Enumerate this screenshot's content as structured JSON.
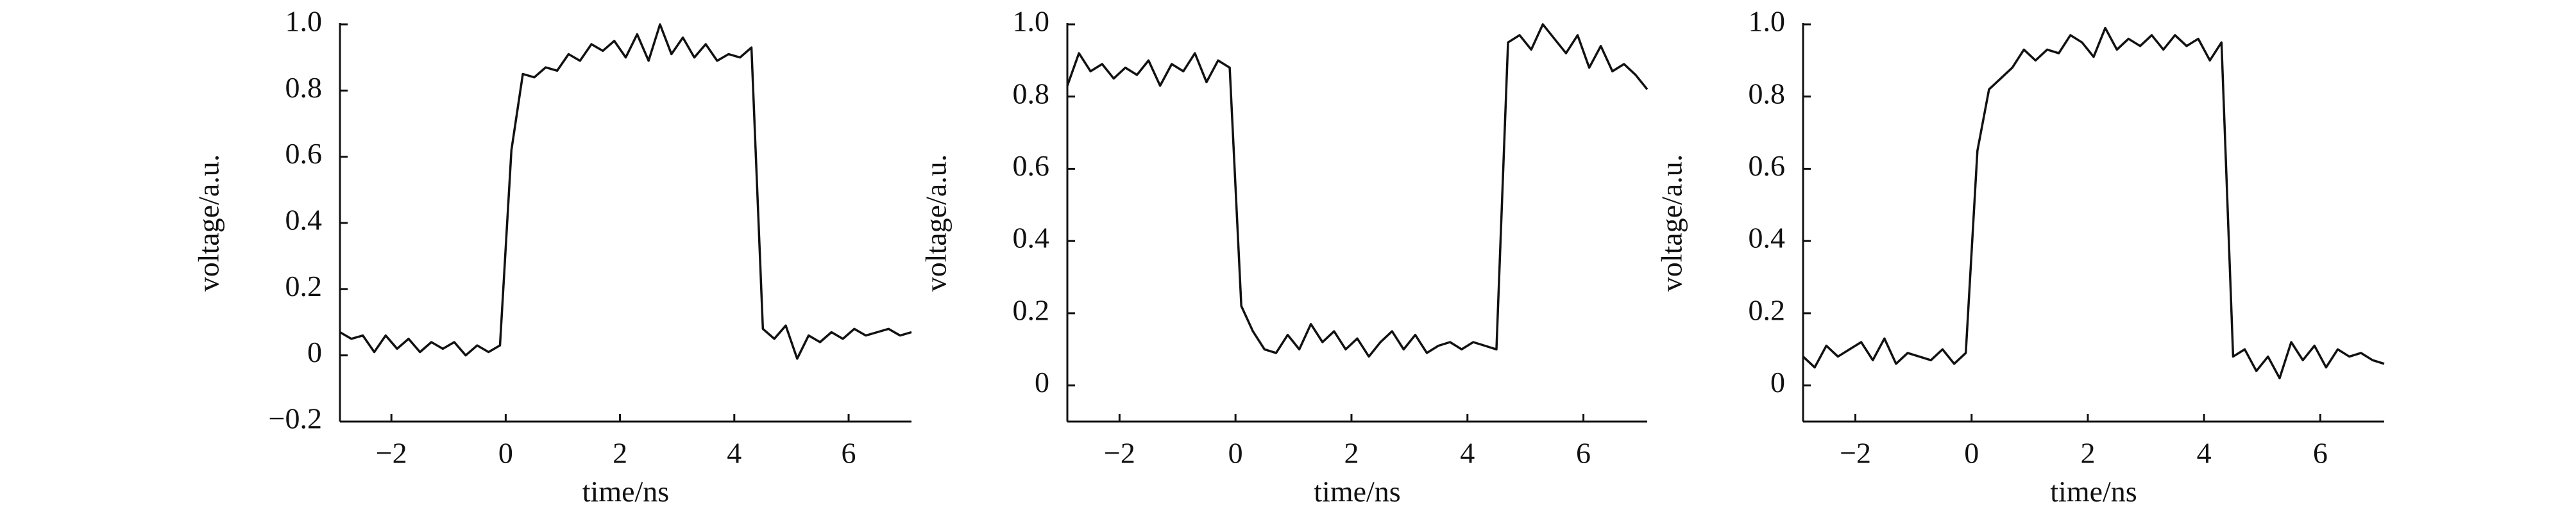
{
  "chart_data": [
    {
      "type": "line",
      "x_label": "time/ns",
      "y_label": "voltage/a.u.",
      "x": [
        -2.9,
        -2.7,
        -2.5,
        -2.3,
        -2.1,
        -1.9,
        -1.7,
        -1.5,
        -1.3,
        -1.1,
        -0.9,
        -0.7,
        -0.5,
        -0.3,
        -0.1,
        0.1,
        0.3,
        0.5,
        0.7,
        0.9,
        1.1,
        1.3,
        1.5,
        1.7,
        1.9,
        2.1,
        2.3,
        2.5,
        2.7,
        2.9,
        3.1,
        3.3,
        3.5,
        3.7,
        3.9,
        4.1,
        4.3,
        4.5,
        4.7,
        4.9,
        5.1,
        5.3,
        5.5,
        5.7,
        5.9,
        6.1,
        6.3,
        6.5,
        6.7,
        6.9,
        7.1
      ],
      "values": [
        0.07,
        0.05,
        0.06,
        0.01,
        0.06,
        0.02,
        0.05,
        0.01,
        0.04,
        0.02,
        0.04,
        0.0,
        0.03,
        0.01,
        0.03,
        0.62,
        0.85,
        0.84,
        0.87,
        0.86,
        0.91,
        0.89,
        0.94,
        0.92,
        0.95,
        0.9,
        0.97,
        0.89,
        1.0,
        0.91,
        0.96,
        0.9,
        0.94,
        0.89,
        0.91,
        0.9,
        0.93,
        0.08,
        0.05,
        0.09,
        -0.01,
        0.06,
        0.04,
        0.07,
        0.05,
        0.08,
        0.06,
        0.07,
        0.08,
        0.06,
        0.07
      ],
      "color": "#111111",
      "xlim": [
        -2.9,
        7.1
      ],
      "xticks": [
        {
          "value": -2,
          "label": "−2"
        },
        0,
        2,
        4,
        6
      ],
      "ylim": [
        -0.2,
        1.0
      ],
      "yticks": [
        {
          "value": -0.2,
          "label": "−0.2"
        },
        0,
        0.2,
        0.4,
        0.6,
        0.8,
        {
          "value": 1.0,
          "label": "1.0"
        }
      ]
    },
    {
      "type": "line",
      "x_label": "time/ns",
      "y_label": "voltage/a.u.",
      "x": [
        -2.9,
        -2.7,
        -2.5,
        -2.3,
        -2.1,
        -1.9,
        -1.7,
        -1.5,
        -1.3,
        -1.1,
        -0.9,
        -0.7,
        -0.5,
        -0.3,
        -0.1,
        0.1,
        0.3,
        0.5,
        0.7,
        0.9,
        1.1,
        1.3,
        1.5,
        1.7,
        1.9,
        2.1,
        2.3,
        2.5,
        2.7,
        2.9,
        3.1,
        3.3,
        3.5,
        3.7,
        3.9,
        4.1,
        4.3,
        4.5,
        4.7,
        4.9,
        5.1,
        5.3,
        5.5,
        5.7,
        5.9,
        6.1,
        6.3,
        6.5,
        6.7,
        6.9,
        7.1
      ],
      "values": [
        0.83,
        0.92,
        0.87,
        0.89,
        0.85,
        0.88,
        0.86,
        0.9,
        0.83,
        0.89,
        0.87,
        0.92,
        0.84,
        0.9,
        0.88,
        0.22,
        0.15,
        0.1,
        0.09,
        0.14,
        0.1,
        0.17,
        0.12,
        0.15,
        0.1,
        0.13,
        0.08,
        0.12,
        0.15,
        0.1,
        0.14,
        0.09,
        0.11,
        0.12,
        0.1,
        0.12,
        0.11,
        0.1,
        0.95,
        0.97,
        0.93,
        1.0,
        0.96,
        0.92,
        0.97,
        0.88,
        0.94,
        0.87,
        0.89,
        0.86,
        0.82
      ],
      "color": "#111111",
      "xlim": [
        -2.9,
        7.1
      ],
      "xticks": [
        {
          "value": -2,
          "label": "−2"
        },
        0,
        2,
        4,
        6
      ],
      "ylim": [
        -0.1,
        1.0
      ],
      "yticks": [
        0,
        0.2,
        0.4,
        0.6,
        0.8,
        {
          "value": 1.0,
          "label": "1.0"
        }
      ]
    },
    {
      "type": "line",
      "x_label": "time/ns",
      "y_label": "voltage/a.u.",
      "x": [
        -2.9,
        -2.7,
        -2.5,
        -2.3,
        -2.1,
        -1.9,
        -1.7,
        -1.5,
        -1.3,
        -1.1,
        -0.9,
        -0.7,
        -0.5,
        -0.3,
        -0.1,
        0.1,
        0.3,
        0.5,
        0.7,
        0.9,
        1.1,
        1.3,
        1.5,
        1.7,
        1.9,
        2.1,
        2.3,
        2.5,
        2.7,
        2.9,
        3.1,
        3.3,
        3.5,
        3.7,
        3.9,
        4.1,
        4.3,
        4.5,
        4.7,
        4.9,
        5.1,
        5.3,
        5.5,
        5.7,
        5.9,
        6.1,
        6.3,
        6.5,
        6.7,
        6.9,
        7.1
      ],
      "values": [
        0.08,
        0.05,
        0.11,
        0.08,
        0.1,
        0.12,
        0.07,
        0.13,
        0.06,
        0.09,
        0.08,
        0.07,
        0.1,
        0.06,
        0.09,
        0.65,
        0.82,
        0.85,
        0.88,
        0.93,
        0.9,
        0.93,
        0.92,
        0.97,
        0.95,
        0.91,
        0.99,
        0.93,
        0.96,
        0.94,
        0.97,
        0.93,
        0.97,
        0.94,
        0.96,
        0.9,
        0.95,
        0.08,
        0.1,
        0.04,
        0.08,
        0.02,
        0.12,
        0.07,
        0.11,
        0.05,
        0.1,
        0.08,
        0.09,
        0.07,
        0.06
      ],
      "color": "#111111",
      "xlim": [
        -2.9,
        7.1
      ],
      "xticks": [
        {
          "value": -2,
          "label": "−2"
        },
        0,
        2,
        4,
        6
      ],
      "ylim": [
        -0.1,
        1.0
      ],
      "yticks": [
        0,
        0.2,
        0.4,
        0.6,
        0.8,
        {
          "value": 1.0,
          "label": "1.0"
        }
      ]
    }
  ]
}
